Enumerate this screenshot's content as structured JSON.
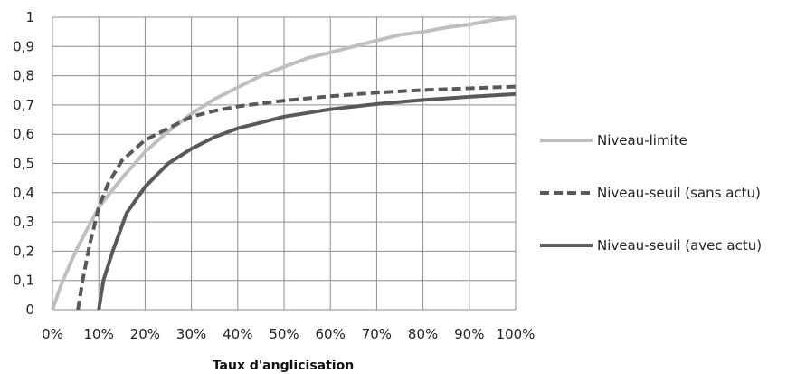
{
  "chart_data": {
    "type": "line",
    "title": "",
    "xlabel": "Taux d'anglicisation",
    "ylabel": "",
    "xlim": [
      0,
      1
    ],
    "ylim": [
      0,
      1
    ],
    "grid": true,
    "legend_position": "right",
    "x_ticks": [
      "0%",
      "10%",
      "20%",
      "30%",
      "40%",
      "50%",
      "60%",
      "70%",
      "80%",
      "90%",
      "100%"
    ],
    "y_ticks": [
      "0",
      "0,1",
      "0,2",
      "0,3",
      "0,4",
      "0,5",
      "0,6",
      "0,7",
      "0,8",
      "0,9",
      "1"
    ],
    "series": [
      {
        "name": "Niveau-limite",
        "color": "#bfbfbf",
        "dash": "solid",
        "points": [
          [
            0,
            0
          ],
          [
            0.02,
            0.09
          ],
          [
            0.05,
            0.2
          ],
          [
            0.1,
            0.35
          ],
          [
            0.15,
            0.45
          ],
          [
            0.2,
            0.54
          ],
          [
            0.25,
            0.61
          ],
          [
            0.3,
            0.67
          ],
          [
            0.35,
            0.72
          ],
          [
            0.4,
            0.76
          ],
          [
            0.45,
            0.8
          ],
          [
            0.5,
            0.83
          ],
          [
            0.55,
            0.86
          ],
          [
            0.6,
            0.88
          ],
          [
            0.65,
            0.9
          ],
          [
            0.7,
            0.92
          ],
          [
            0.75,
            0.94
          ],
          [
            0.8,
            0.95
          ],
          [
            0.85,
            0.965
          ],
          [
            0.9,
            0.975
          ],
          [
            0.95,
            0.99
          ],
          [
            1.0,
            1.0
          ]
        ]
      },
      {
        "name": "Niveau-seuil (sans actu)",
        "color": "#595959",
        "dash": "dashed",
        "points": [
          [
            0.055,
            0
          ],
          [
            0.065,
            0.1
          ],
          [
            0.08,
            0.22
          ],
          [
            0.1,
            0.35
          ],
          [
            0.12,
            0.43
          ],
          [
            0.15,
            0.51
          ],
          [
            0.2,
            0.58
          ],
          [
            0.25,
            0.62
          ],
          [
            0.3,
            0.66
          ],
          [
            0.35,
            0.68
          ],
          [
            0.4,
            0.695
          ],
          [
            0.5,
            0.715
          ],
          [
            0.6,
            0.73
          ],
          [
            0.7,
            0.742
          ],
          [
            0.8,
            0.751
          ],
          [
            0.9,
            0.757
          ],
          [
            1.0,
            0.763
          ]
        ]
      },
      {
        "name": "Niveau-seuil (avec actu)",
        "color": "#595959",
        "dash": "solid",
        "points": [
          [
            0.1,
            0
          ],
          [
            0.11,
            0.1
          ],
          [
            0.13,
            0.2
          ],
          [
            0.16,
            0.33
          ],
          [
            0.2,
            0.42
          ],
          [
            0.25,
            0.5
          ],
          [
            0.3,
            0.55
          ],
          [
            0.35,
            0.59
          ],
          [
            0.4,
            0.62
          ],
          [
            0.45,
            0.64
          ],
          [
            0.5,
            0.66
          ],
          [
            0.6,
            0.685
          ],
          [
            0.7,
            0.703
          ],
          [
            0.8,
            0.717
          ],
          [
            0.9,
            0.728
          ],
          [
            1.0,
            0.737
          ]
        ]
      }
    ]
  }
}
